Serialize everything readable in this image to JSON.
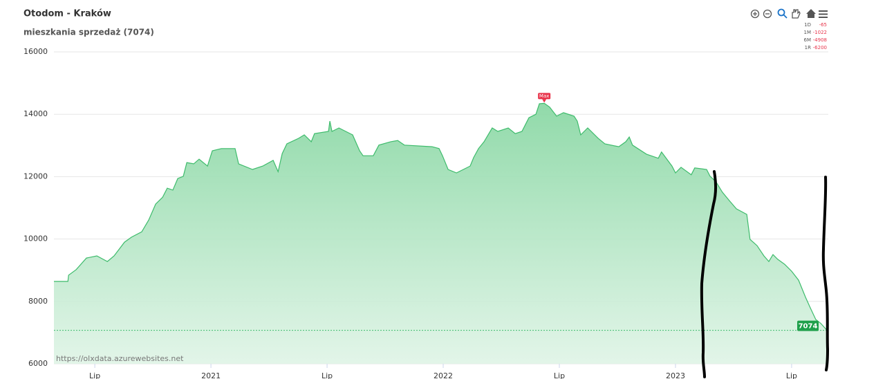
{
  "chart_data": {
    "type": "area",
    "title": "Otodom - Kraków",
    "subtitle": "mieszkania sprzedaż (7074)",
    "credits": "https://olxdata.azurewebsites.net",
    "max_label": "Max",
    "last_value": 7074,
    "changes": [
      {
        "period": "1D",
        "value": -65
      },
      {
        "period": "1M",
        "value": -1022
      },
      {
        "period": "6M",
        "value": -4908
      },
      {
        "period": "1R",
        "value": -6200
      }
    ],
    "color": "#3dbb6b",
    "grid": true,
    "xlim": [
      2020.324,
      2023.658
    ],
    "xticks": [
      {
        "value": 2020.5,
        "label": "Lip"
      },
      2021,
      {
        "value": 2021.5,
        "label": "Lip"
      },
      2022,
      {
        "value": 2022.5,
        "label": "Lip"
      },
      2023,
      {
        "value": 2023.5,
        "label": "Lip"
      }
    ],
    "ylim": [
      6000,
      16000
    ],
    "yticks": [
      6000,
      8000,
      10000,
      12000,
      14000,
      16000
    ],
    "x": [
      2020.324,
      2020.384,
      2020.387,
      2020.42,
      2020.464,
      2020.509,
      2020.554,
      2020.583,
      2020.628,
      2020.658,
      2020.702,
      2020.732,
      2020.762,
      2020.792,
      2020.812,
      2020.836,
      2020.857,
      2020.881,
      2020.896,
      2020.926,
      2020.949,
      2020.985,
      2021.006,
      2021.045,
      2021.104,
      2021.119,
      2021.179,
      2021.223,
      2021.268,
      2021.289,
      2021.307,
      2021.327,
      2021.378,
      2021.402,
      2021.432,
      2021.446,
      2021.506,
      2021.512,
      2021.521,
      2021.551,
      2021.61,
      2021.64,
      2021.655,
      2021.699,
      2021.723,
      2021.774,
      2021.804,
      2021.833,
      2021.952,
      2021.982,
      2021.997,
      2022.021,
      2022.057,
      2022.116,
      2022.131,
      2022.152,
      2022.176,
      2022.211,
      2022.235,
      2022.28,
      2022.31,
      2022.339,
      2022.369,
      2022.399,
      2022.414,
      2022.435,
      2022.458,
      2022.488,
      2022.518,
      2022.563,
      2022.577,
      2022.592,
      2022.622,
      2022.667,
      2022.696,
      2022.756,
      2022.786,
      2022.801,
      2022.815,
      2022.875,
      2022.926,
      2022.94,
      2022.985,
      2023.0,
      2023.024,
      2023.068,
      2023.083,
      2023.134,
      2023.149,
      2023.173,
      2023.202,
      2023.232,
      2023.262,
      2023.307,
      2023.321,
      2023.351,
      2023.381,
      2023.402,
      2023.42,
      2023.44,
      2023.47,
      2023.5,
      2023.53,
      2023.56,
      2023.58,
      2023.604,
      2023.625,
      2023.643,
      2023.652
    ],
    "values": [
      8640,
      8640,
      8840,
      9020,
      9390,
      9460,
      9280,
      9460,
      9900,
      10060,
      10230,
      10610,
      11120,
      11340,
      11630,
      11570,
      11940,
      12010,
      12450,
      12410,
      12560,
      12340,
      12830,
      12900,
      12900,
      12410,
      12230,
      12340,
      12520,
      12160,
      12740,
      13050,
      13230,
      13340,
      13120,
      13380,
      13450,
      13780,
      13450,
      13560,
      13340,
      12830,
      12670,
      12670,
      13010,
      13120,
      13160,
      13010,
      12960,
      12900,
      12670,
      12230,
      12120,
      12340,
      12610,
      12900,
      13120,
      13560,
      13450,
      13560,
      13380,
      13450,
      13890,
      14000,
      14340,
      14350,
      14230,
      13940,
      14050,
      13940,
      13780,
      13340,
      13560,
      13230,
      13050,
      12960,
      13120,
      13270,
      13010,
      12720,
      12590,
      12790,
      12340,
      12120,
      12300,
      12060,
      12280,
      12230,
      12010,
      11850,
      11500,
      11230,
      10970,
      10790,
      9990,
      9790,
      9460,
      9280,
      9500,
      9350,
      9190,
      8970,
      8680,
      8130,
      7800,
      7420,
      7300,
      7150,
      7074
    ]
  }
}
